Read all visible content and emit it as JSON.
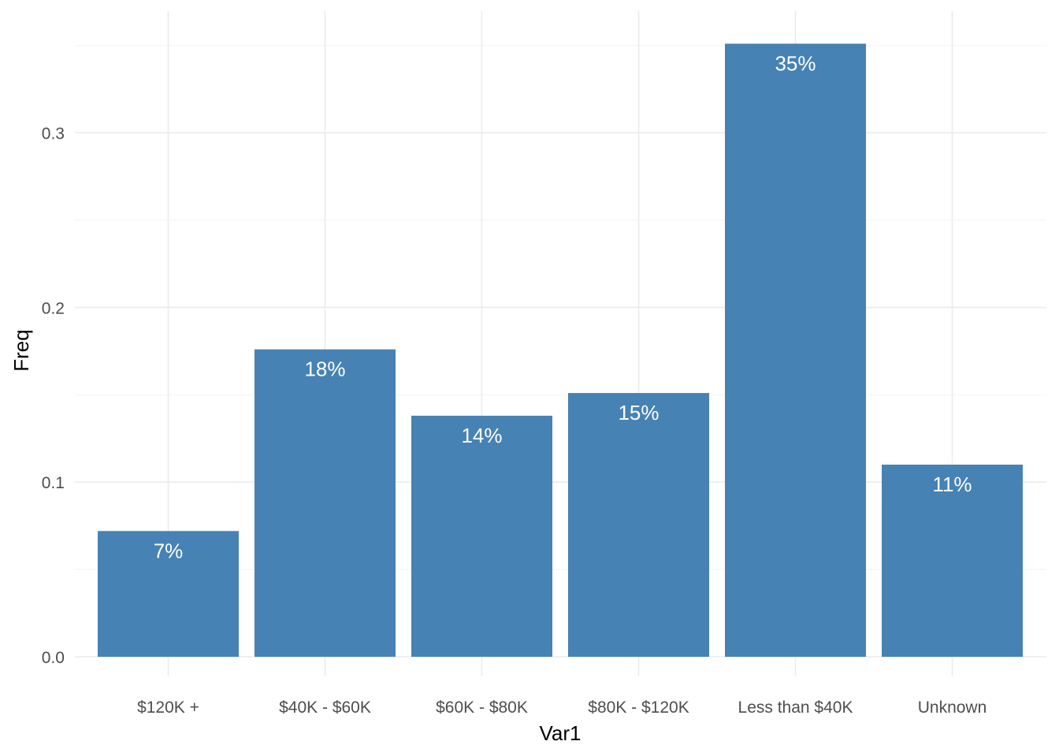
{
  "chart_data": {
    "type": "bar",
    "categories": [
      "$120K +",
      "$40K - $60K",
      "$60K - $80K",
      "$80K - $120K",
      "Less than $40K",
      "Unknown"
    ],
    "values": [
      0.072,
      0.176,
      0.138,
      0.151,
      0.351,
      0.11
    ],
    "data_labels": [
      "7%",
      "18%",
      "14%",
      "15%",
      "35%",
      "11%"
    ],
    "xlabel": "Var1",
    "ylabel": "Freq",
    "ylim": [
      0,
      0.35
    ],
    "yticks": [
      0.0,
      0.1,
      0.2,
      0.3
    ],
    "ytick_labels": [
      "0.0",
      "0.1",
      "0.2",
      "0.3"
    ],
    "grid": true,
    "legend": "none",
    "bar_color": "#4682b4"
  }
}
